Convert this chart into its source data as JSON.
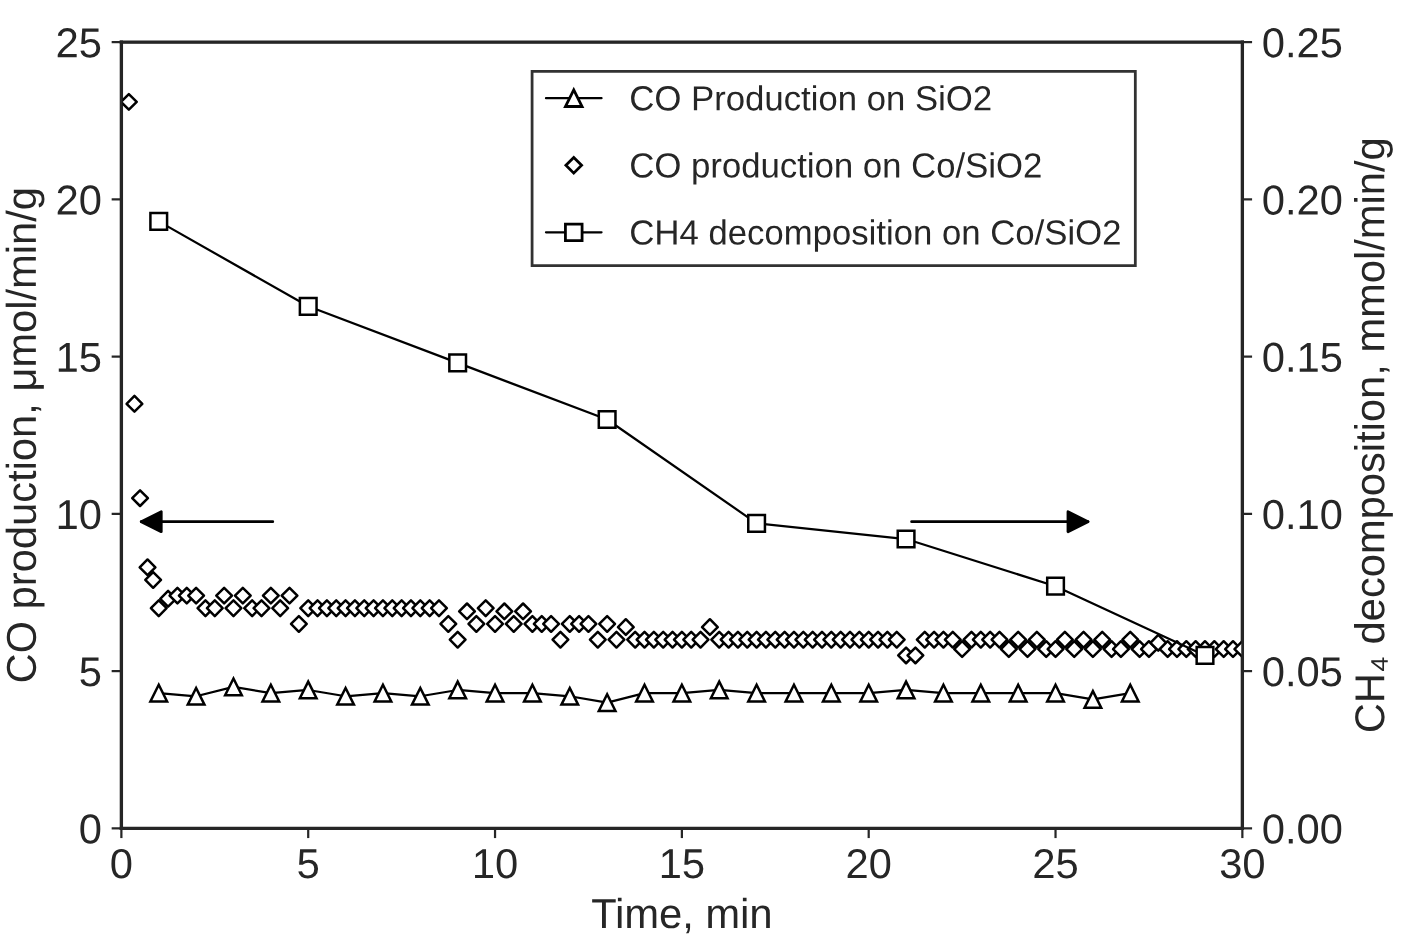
{
  "chart_data": {
    "type": "line",
    "xlabel": "Time, min",
    "ylabel": "CO production, μmol/min/g",
    "y2label": "CH₄ decomposition, mmol/min/g",
    "xlim": [
      0,
      30
    ],
    "xticks": [
      0,
      5,
      10,
      15,
      20,
      25,
      30
    ],
    "ylim": [
      0,
      25
    ],
    "yticks": [
      0,
      5,
      10,
      15,
      20,
      25
    ],
    "y2lim": [
      0,
      0.25
    ],
    "y2ticks": [
      {
        "value": 0,
        "label": "0.00"
      },
      {
        "value": 0.05,
        "label": "0.05"
      },
      {
        "value": 0.1,
        "label": "0.10"
      },
      {
        "value": 0.15,
        "label": "0.15"
      },
      {
        "value": 0.2,
        "label": "0.20"
      },
      {
        "value": 0.25,
        "label": "0.25"
      }
    ],
    "legend": "top right",
    "grid": false,
    "series": [
      {
        "name": "CO Production on SiO2",
        "marker": "triangle",
        "color": "#000000",
        "x": [
          1,
          2,
          3,
          4,
          5,
          6,
          7,
          8,
          9,
          10,
          11,
          12,
          13,
          14,
          15,
          16,
          17,
          18,
          19,
          20,
          21,
          22,
          23,
          24,
          25,
          26,
          27
        ],
        "values": [
          4.3,
          4.2,
          4.5,
          4.3,
          4.4,
          4.2,
          4.3,
          4.2,
          4.4,
          4.3,
          4.3,
          4.2,
          4.0,
          4.3,
          4.3,
          4.4,
          4.3,
          4.3,
          4.3,
          4.3,
          4.4,
          4.3,
          4.3,
          4.3,
          4.3,
          4.1,
          4.3
        ]
      },
      {
        "name": "CO production on Co/SiO2",
        "type": "scatter",
        "marker": "diamond",
        "color": "#000000",
        "x": [
          0.2,
          0.35,
          0.5,
          0.7,
          0.85,
          1.0,
          1.25,
          1.5,
          1.75,
          2.0,
          2.25,
          2.5,
          2.75,
          3.0,
          3.25,
          3.5,
          3.75,
          4.0,
          4.25,
          4.5,
          4.75,
          5.0,
          5.25,
          5.5,
          5.75,
          6.0,
          6.25,
          6.5,
          6.75,
          7.0,
          7.25,
          7.5,
          7.75,
          8.0,
          8.25,
          8.5,
          8.75,
          9.0,
          9.25,
          9.5,
          9.75,
          10.0,
          10.25,
          10.5,
          10.75,
          11.0,
          11.25,
          11.5,
          11.75,
          12.0,
          12.25,
          12.5,
          12.75,
          13.0,
          13.25,
          13.5,
          13.75,
          14.0,
          14.25,
          14.5,
          14.75,
          15.0,
          15.25,
          15.5,
          15.75,
          16.0,
          16.25,
          16.5,
          16.75,
          17.0,
          17.25,
          17.5,
          17.75,
          18.0,
          18.25,
          18.5,
          18.75,
          19.0,
          19.25,
          19.5,
          19.75,
          20.0,
          20.25,
          20.5,
          20.75,
          21.0,
          21.25,
          21.5,
          21.75,
          22.0,
          22.25,
          22.5,
          22.75,
          23.0,
          23.25,
          23.5,
          23.75,
          24.0,
          24.25,
          24.5,
          24.75,
          25.0,
          25.25,
          25.5,
          25.75,
          26.0,
          26.25,
          26.5,
          26.75,
          27.0,
          27.25,
          27.5,
          27.75,
          28.0,
          28.25,
          28.5,
          28.75,
          29.0,
          29.25,
          29.5,
          29.75,
          30.0
        ],
        "values": [
          23.1,
          13.5,
          10.5,
          8.3,
          7.9,
          7.0,
          7.3,
          7.4,
          7.4,
          7.4,
          7.0,
          7.0,
          7.4,
          7.0,
          7.4,
          7.0,
          7.0,
          7.4,
          7.0,
          7.4,
          6.5,
          7.0,
          7.0,
          7.0,
          7.0,
          7.0,
          7.0,
          7.0,
          7.0,
          7.0,
          7.0,
          7.0,
          7.0,
          7.0,
          7.0,
          7.0,
          6.5,
          6.0,
          6.9,
          6.5,
          7.0,
          6.5,
          6.9,
          6.5,
          6.9,
          6.5,
          6.5,
          6.5,
          6.0,
          6.5,
          6.5,
          6.5,
          6.0,
          6.5,
          6.0,
          6.4,
          6.0,
          6.0,
          6.0,
          6.0,
          6.0,
          6.0,
          6.0,
          6.0,
          6.4,
          6.0,
          6.0,
          6.0,
          6.0,
          6.0,
          6.0,
          6.0,
          6.0,
          6.0,
          6.0,
          6.0,
          6.0,
          6.0,
          6.0,
          6.0,
          6.0,
          6.0,
          6.0,
          6.0,
          6.0,
          5.5,
          5.5,
          6.0,
          6.0,
          6.0,
          6.0,
          5.7,
          6.0,
          6.0,
          6.0,
          6.0,
          5.7,
          6.0,
          5.7,
          6.0,
          5.7,
          5.7,
          6.0,
          5.7,
          6.0,
          5.7,
          6.0,
          5.7,
          5.7,
          6.0,
          5.7,
          5.7,
          5.9,
          5.7,
          5.7,
          5.7,
          5.7,
          5.7,
          5.7,
          5.7,
          5.7,
          5.7
        ]
      },
      {
        "name": "CH4 decomposition on Co/SiO2",
        "axis": "y2",
        "marker": "square",
        "color": "#000000",
        "x": [
          1,
          5,
          9,
          13,
          17,
          21,
          25,
          29
        ],
        "values": [
          0.193,
          0.166,
          0.148,
          0.13,
          0.097,
          0.092,
          0.077,
          0.055
        ]
      }
    ]
  }
}
